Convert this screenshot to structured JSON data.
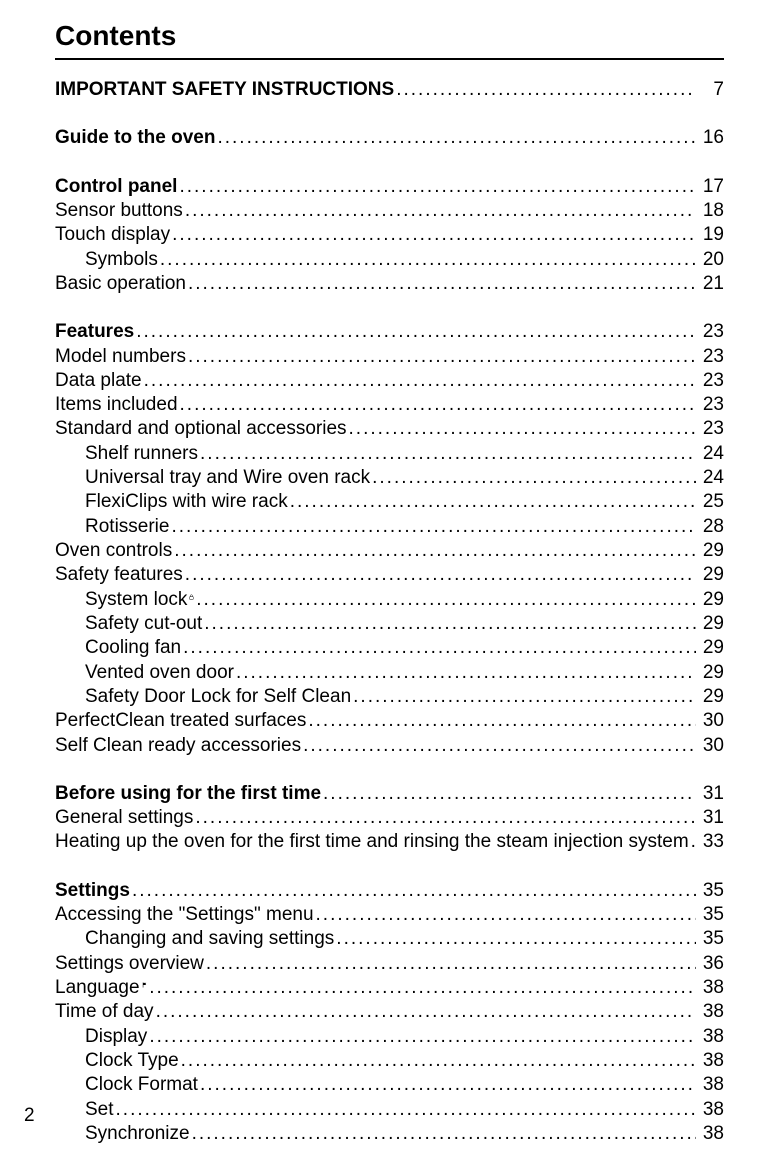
{
  "title": "Contents",
  "pageNumber": "2",
  "entries": [
    {
      "label": "IMPORTANT SAFETY INSTRUCTIONS",
      "page": "7",
      "bold": true,
      "indent": 0
    },
    {
      "blank": true
    },
    {
      "label": "Guide to the oven",
      "page": "16",
      "bold": true,
      "indent": 0
    },
    {
      "blank": true
    },
    {
      "label": "Control panel",
      "page": "17",
      "bold": true,
      "indent": 0
    },
    {
      "label": "Sensor buttons",
      "page": "18",
      "bold": false,
      "indent": 0
    },
    {
      "label": "Touch display",
      "page": "19",
      "bold": false,
      "indent": 0
    },
    {
      "label": "Symbols",
      "page": "20",
      "bold": false,
      "indent": 1
    },
    {
      "label": "Basic operation",
      "page": "21",
      "bold": false,
      "indent": 0
    },
    {
      "blank": true
    },
    {
      "label": "Features",
      "page": "23",
      "bold": true,
      "indent": 0
    },
    {
      "label": "Model numbers ",
      "page": "23",
      "bold": false,
      "indent": 0
    },
    {
      "label": "Data plate ",
      "page": "23",
      "bold": false,
      "indent": 0
    },
    {
      "label": "Items included",
      "page": "23",
      "bold": false,
      "indent": 0
    },
    {
      "label": "Standard and optional accessories",
      "page": "23",
      "bold": false,
      "indent": 0
    },
    {
      "label": "Shelf runners",
      "page": "24",
      "bold": false,
      "indent": 1
    },
    {
      "label": "Universal tray and Wire oven rack",
      "page": "24",
      "bold": false,
      "indent": 1
    },
    {
      "label": "FlexiClips with wire rack ",
      "page": "25",
      "bold": false,
      "indent": 1
    },
    {
      "label": "Rotisserie ",
      "page": "28",
      "bold": false,
      "indent": 1
    },
    {
      "label": "Oven controls ",
      "page": "29",
      "bold": false,
      "indent": 0
    },
    {
      "label": "Safety features",
      "page": "29",
      "bold": false,
      "indent": 0
    },
    {
      "label": "System lock ",
      "page": "29",
      "bold": false,
      "indent": 1,
      "icon": "lock"
    },
    {
      "label": "Safety cut-out",
      "page": "29",
      "bold": false,
      "indent": 1
    },
    {
      "label": "Cooling fan",
      "page": "29",
      "bold": false,
      "indent": 1
    },
    {
      "label": "Vented oven door",
      "page": "29",
      "bold": false,
      "indent": 1
    },
    {
      "label": "Safety Door Lock for Self Clean",
      "page": "29",
      "bold": false,
      "indent": 1
    },
    {
      "label": "PerfectClean treated surfaces ",
      "page": "30",
      "bold": false,
      "indent": 0
    },
    {
      "label": "Self Clean ready accessories",
      "page": "30",
      "bold": false,
      "indent": 0
    },
    {
      "blank": true
    },
    {
      "label": "Before using for the first time",
      "page": "31",
      "bold": true,
      "indent": 0
    },
    {
      "label": "General settings",
      "page": "31",
      "bold": false,
      "indent": 0
    },
    {
      "label": "Heating up the oven for the first time and rinsing the steam injection system",
      "page": "33",
      "bold": false,
      "indent": 0
    },
    {
      "blank": true
    },
    {
      "label": "Settings",
      "page": "35",
      "bold": true,
      "indent": 0
    },
    {
      "label": "Accessing the \"Settings\" menu",
      "page": "35",
      "bold": false,
      "indent": 0
    },
    {
      "label": "Changing and saving settings",
      "page": "35",
      "bold": false,
      "indent": 1
    },
    {
      "label": "Settings overview",
      "page": "36",
      "bold": false,
      "indent": 0
    },
    {
      "label": "Language ",
      "page": "38",
      "bold": false,
      "indent": 0,
      "icon": "flag"
    },
    {
      "label": "Time of day",
      "page": "38",
      "bold": false,
      "indent": 0
    },
    {
      "label": "Display",
      "page": "38",
      "bold": false,
      "indent": 1
    },
    {
      "label": "Clock Type",
      "page": "38",
      "bold": false,
      "indent": 1
    },
    {
      "label": "Clock Format",
      "page": "38",
      "bold": false,
      "indent": 1
    },
    {
      "label": "Set",
      "page": "38",
      "bold": false,
      "indent": 1
    },
    {
      "label": "Synchronize",
      "page": "38",
      "bold": false,
      "indent": 1
    }
  ],
  "icons": {
    "lock": "lock-icon",
    "flag": "flag-icon"
  },
  "style": {
    "fontFamily": "Arial, Helvetica, sans-serif",
    "titleFontSize": 28,
    "bodyFontSize": 19,
    "textColor": "#000000",
    "backgroundColor": "#ffffff",
    "ruleColor": "#000000",
    "indentPx": 30,
    "pageWidth": 768,
    "pageHeight": 1149
  }
}
